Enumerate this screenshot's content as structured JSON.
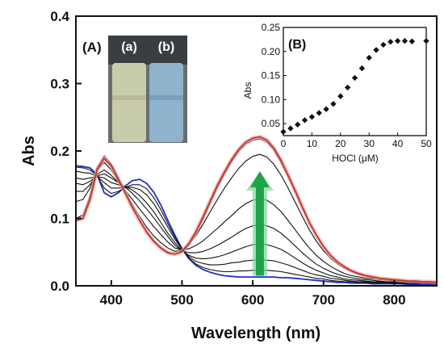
{
  "chart_data": [
    {
      "type": "line",
      "panel_label": "(A)",
      "xlabel": "Wavelength (nm)",
      "ylabel": "Abs",
      "xlim": [
        350,
        860
      ],
      "ylim": [
        0.0,
        0.4
      ],
      "xticks": [
        400,
        500,
        600,
        700,
        800
      ],
      "yticks": [
        0.0,
        0.1,
        0.2,
        0.3,
        0.4
      ],
      "x": [
        350,
        360,
        370,
        380,
        390,
        400,
        410,
        420,
        430,
        440,
        450,
        460,
        470,
        480,
        490,
        500,
        510,
        520,
        530,
        540,
        550,
        560,
        570,
        580,
        590,
        600,
        610,
        620,
        630,
        640,
        650,
        660,
        670,
        680,
        690,
        700,
        710,
        720,
        730,
        740,
        750,
        760,
        770,
        780,
        790,
        800,
        810,
        820,
        830,
        840,
        850,
        860
      ],
      "series": [
        {
          "color": "#1f2fbf",
          "values": [
            0.178,
            0.177,
            0.175,
            0.165,
            0.138,
            0.132,
            0.138,
            0.148,
            0.156,
            0.158,
            0.152,
            0.139,
            0.12,
            0.097,
            0.075,
            0.055,
            0.04,
            0.03,
            0.024,
            0.02,
            0.017,
            0.015,
            0.014,
            0.013,
            0.013,
            0.013,
            0.013,
            0.013,
            0.013,
            0.012,
            0.012,
            0.011,
            0.01,
            0.009,
            0.008,
            0.007,
            0.006,
            0.005,
            0.005,
            0.004,
            0.004,
            0.004,
            0.003,
            0.003,
            0.003,
            0.003,
            0.003,
            0.002,
            0.002,
            0.002,
            0.002,
            0.002
          ]
        },
        {
          "color": "#111111",
          "values": [
            0.176,
            0.175,
            0.172,
            0.163,
            0.145,
            0.137,
            0.14,
            0.146,
            0.15,
            0.15,
            0.144,
            0.131,
            0.113,
            0.092,
            0.072,
            0.054,
            0.041,
            0.032,
            0.027,
            0.024,
            0.022,
            0.021,
            0.021,
            0.022,
            0.022,
            0.023,
            0.023,
            0.023,
            0.022,
            0.021,
            0.019,
            0.017,
            0.015,
            0.013,
            0.011,
            0.01,
            0.008,
            0.007,
            0.006,
            0.006,
            0.005,
            0.005,
            0.004,
            0.004,
            0.004,
            0.004,
            0.003,
            0.003,
            0.003,
            0.003,
            0.003,
            0.003
          ]
        },
        {
          "color": "#111111",
          "values": [
            0.17,
            0.168,
            0.167,
            0.162,
            0.153,
            0.145,
            0.145,
            0.146,
            0.146,
            0.143,
            0.135,
            0.122,
            0.105,
            0.087,
            0.069,
            0.054,
            0.043,
            0.036,
            0.033,
            0.031,
            0.031,
            0.032,
            0.034,
            0.035,
            0.037,
            0.038,
            0.039,
            0.038,
            0.037,
            0.034,
            0.031,
            0.027,
            0.023,
            0.019,
            0.016,
            0.014,
            0.011,
            0.01,
            0.008,
            0.007,
            0.006,
            0.006,
            0.005,
            0.005,
            0.005,
            0.004,
            0.004,
            0.004,
            0.004,
            0.003,
            0.003,
            0.003
          ]
        },
        {
          "color": "#111111",
          "values": [
            0.16,
            0.158,
            0.16,
            0.162,
            0.16,
            0.153,
            0.15,
            0.147,
            0.142,
            0.134,
            0.123,
            0.11,
            0.094,
            0.078,
            0.064,
            0.052,
            0.045,
            0.041,
            0.04,
            0.041,
            0.043,
            0.046,
            0.05,
            0.054,
            0.058,
            0.061,
            0.062,
            0.061,
            0.058,
            0.054,
            0.048,
            0.041,
            0.034,
            0.028,
            0.023,
            0.019,
            0.015,
            0.013,
            0.01,
            0.009,
            0.008,
            0.007,
            0.006,
            0.006,
            0.005,
            0.005,
            0.005,
            0.004,
            0.004,
            0.004,
            0.004,
            0.003
          ]
        },
        {
          "color": "#111111",
          "values": [
            0.152,
            0.15,
            0.155,
            0.163,
            0.166,
            0.16,
            0.153,
            0.146,
            0.137,
            0.126,
            0.114,
            0.101,
            0.087,
            0.073,
            0.06,
            0.052,
            0.049,
            0.049,
            0.051,
            0.055,
            0.06,
            0.066,
            0.072,
            0.079,
            0.085,
            0.089,
            0.091,
            0.089,
            0.085,
            0.078,
            0.069,
            0.059,
            0.049,
            0.04,
            0.032,
            0.026,
            0.021,
            0.017,
            0.014,
            0.012,
            0.01,
            0.009,
            0.008,
            0.007,
            0.006,
            0.006,
            0.005,
            0.005,
            0.005,
            0.004,
            0.004,
            0.004
          ]
        },
        {
          "color": "#111111",
          "values": [
            0.14,
            0.14,
            0.15,
            0.165,
            0.172,
            0.164,
            0.153,
            0.141,
            0.128,
            0.114,
            0.101,
            0.088,
            0.076,
            0.065,
            0.056,
            0.053,
            0.055,
            0.06,
            0.067,
            0.076,
            0.085,
            0.095,
            0.104,
            0.114,
            0.122,
            0.127,
            0.129,
            0.127,
            0.12,
            0.11,
            0.097,
            0.083,
            0.069,
            0.056,
            0.045,
            0.036,
            0.029,
            0.023,
            0.018,
            0.015,
            0.013,
            0.011,
            0.01,
            0.009,
            0.008,
            0.007,
            0.006,
            0.006,
            0.005,
            0.005,
            0.005,
            0.004
          ]
        },
        {
          "color": "#111111",
          "values": [
            0.125,
            0.128,
            0.145,
            0.172,
            0.183,
            0.172,
            0.155,
            0.138,
            0.12,
            0.103,
            0.087,
            0.074,
            0.064,
            0.056,
            0.051,
            0.053,
            0.062,
            0.075,
            0.092,
            0.11,
            0.128,
            0.145,
            0.16,
            0.174,
            0.185,
            0.192,
            0.195,
            0.191,
            0.18,
            0.164,
            0.145,
            0.124,
            0.103,
            0.083,
            0.066,
            0.052,
            0.041,
            0.032,
            0.026,
            0.021,
            0.017,
            0.014,
            0.012,
            0.011,
            0.009,
            0.008,
            0.008,
            0.007,
            0.006,
            0.006,
            0.005,
            0.005
          ]
        },
        {
          "color": "#111111",
          "values": [
            0.1,
            0.105,
            0.133,
            0.176,
            0.193,
            0.181,
            0.16,
            0.138,
            0.117,
            0.098,
            0.081,
            0.067,
            0.057,
            0.05,
            0.047,
            0.05,
            0.061,
            0.079,
            0.1,
            0.123,
            0.146,
            0.166,
            0.184,
            0.199,
            0.21,
            0.216,
            0.218,
            0.213,
            0.201,
            0.183,
            0.162,
            0.139,
            0.115,
            0.093,
            0.074,
            0.058,
            0.045,
            0.035,
            0.028,
            0.022,
            0.018,
            0.015,
            0.013,
            0.011,
            0.01,
            0.009,
            0.008,
            0.007,
            0.007,
            0.006,
            0.006,
            0.005
          ]
        },
        {
          "color": "#c0392b",
          "values": [
            0.097,
            0.1,
            0.128,
            0.172,
            0.189,
            0.178,
            0.158,
            0.137,
            0.116,
            0.097,
            0.08,
            0.066,
            0.056,
            0.049,
            0.047,
            0.051,
            0.063,
            0.081,
            0.103,
            0.126,
            0.149,
            0.169,
            0.187,
            0.202,
            0.213,
            0.219,
            0.221,
            0.216,
            0.204,
            0.186,
            0.164,
            0.141,
            0.117,
            0.094,
            0.075,
            0.058,
            0.045,
            0.035,
            0.028,
            0.022,
            0.018,
            0.015,
            0.013,
            0.011,
            0.01,
            0.009,
            0.008,
            0.007,
            0.007,
            0.006,
            0.006,
            0.005
          ]
        }
      ]
    },
    {
      "type": "scatter",
      "panel_label": "(B)",
      "xlabel": "HOCl (μM)",
      "ylabel": "Abs",
      "xlim": [
        0,
        50
      ],
      "ylim": [
        0.025,
        0.25
      ],
      "xticks": [
        0,
        10,
        20,
        30,
        40,
        50
      ],
      "yticks": [
        0.05,
        0.1,
        0.15,
        0.2,
        0.25
      ],
      "x": [
        0,
        2.5,
        5,
        7.5,
        10,
        12.5,
        15,
        17.5,
        20,
        22.5,
        25,
        27.5,
        30,
        32.5,
        35,
        37.5,
        40,
        42.5,
        45,
        50
      ],
      "y": [
        0.033,
        0.04,
        0.048,
        0.057,
        0.064,
        0.072,
        0.08,
        0.091,
        0.107,
        0.125,
        0.145,
        0.165,
        0.187,
        0.203,
        0.214,
        0.22,
        0.222,
        0.222,
        0.221,
        0.222
      ]
    }
  ],
  "inset_photo": {
    "labels": [
      "(a)",
      "(b)"
    ],
    "colors": {
      "left_solution": "#c9ccaa",
      "right_solution": "#8fb3cc",
      "backdrop": "#3a3d42"
    }
  },
  "colors": {
    "arrow": "#1fa34a",
    "arrow_glow": "#7fd6a0"
  }
}
